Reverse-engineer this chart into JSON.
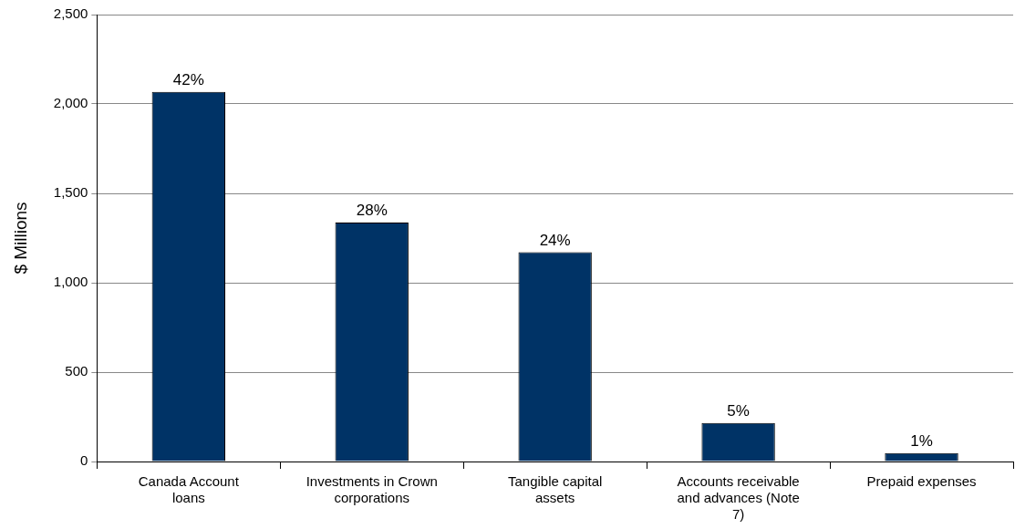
{
  "chart_data": {
    "type": "bar",
    "ylabel": "$ Millions",
    "categories": [
      "Canada Account loans",
      "Investments in Crown corporations",
      "Tangible capital assets",
      "Accounts receivable and advances (Note 7)",
      "Prepaid expenses"
    ],
    "values": [
      2067,
      1337,
      1171,
      215,
      47
    ],
    "annotations": [
      {
        "text": "42%",
        "x": "Canada Account loans",
        "y": 2067
      },
      {
        "text": "28%",
        "x": "Investments in Crown corporations",
        "y": 1337
      },
      {
        "text": "24%",
        "x": "Tangible capital assets",
        "y": 1171
      },
      {
        "text": "5%",
        "x": "Accounts receivable and advances (Note 7)",
        "y": 215
      },
      {
        "text": "1%",
        "x": "Prepaid expenses",
        "y": 47
      }
    ],
    "color": "#003366",
    "ylim": [
      0,
      2500
    ],
    "yticks": [
      {
        "value": 0,
        "label": "0"
      },
      {
        "value": 500,
        "label": "500"
      },
      {
        "value": 1000,
        "label": "1,000"
      },
      {
        "value": 1500,
        "label": "1,500"
      },
      {
        "value": 2000,
        "label": "2,000"
      },
      {
        "value": 2500,
        "label": "2,500"
      }
    ],
    "grid": "y",
    "legend": false
  }
}
